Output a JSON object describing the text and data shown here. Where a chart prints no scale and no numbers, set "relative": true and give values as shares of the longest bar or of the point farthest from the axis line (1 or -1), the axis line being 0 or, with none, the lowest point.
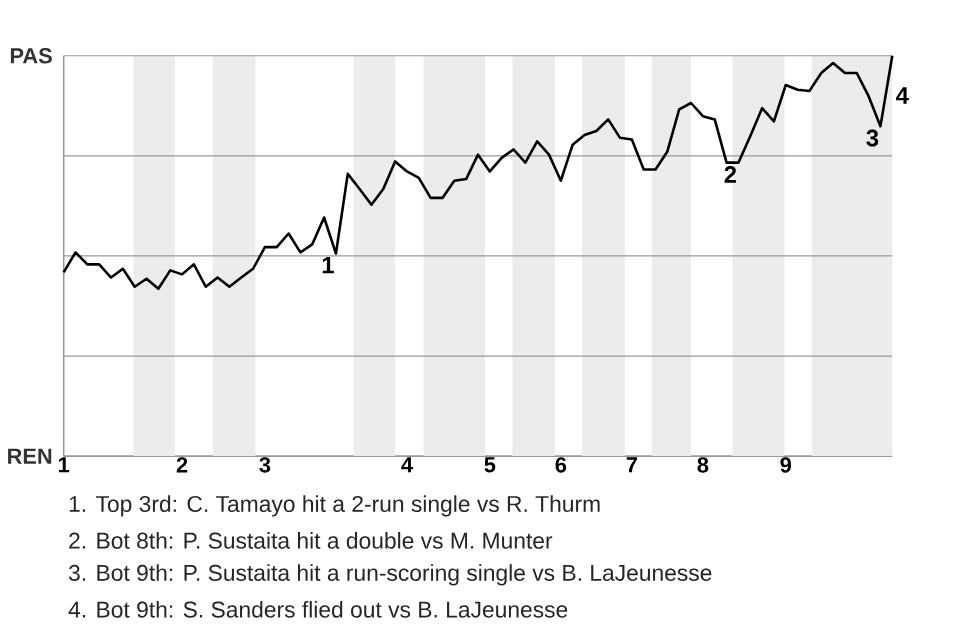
{
  "chart_data": {
    "type": "line",
    "relative": true,
    "categories": [
      "1",
      null,
      null,
      null,
      null,
      null,
      null,
      null,
      null,
      null,
      "2",
      null,
      null,
      null,
      null,
      null,
      null,
      "3",
      null,
      null,
      null,
      null,
      null,
      null,
      null,
      null,
      null,
      null,
      null,
      "4",
      null,
      null,
      null,
      null,
      null,
      null,
      "5",
      null,
      null,
      null,
      null,
      null,
      "6",
      null,
      null,
      null,
      null,
      null,
      "7",
      null,
      null,
      null,
      null,
      null,
      "8",
      null,
      null,
      null,
      null,
      null,
      null,
      "9",
      null,
      null,
      null,
      null,
      null,
      null,
      null,
      null,
      null
    ],
    "series": [
      {
        "color": "#000000",
        "values": [
          0.459,
          0.509,
          0.479,
          0.479,
          0.446,
          0.468,
          0.423,
          0.443,
          0.418,
          0.464,
          0.454,
          0.479,
          0.423,
          0.446,
          0.423,
          0.446,
          0.468,
          0.522,
          0.522,
          0.556,
          0.509,
          0.529,
          0.596,
          0.506,
          0.705,
          0.667,
          0.628,
          0.667,
          0.736,
          0.711,
          0.695,
          0.645,
          0.645,
          0.688,
          0.692,
          0.753,
          0.711,
          0.745,
          0.766,
          0.733,
          0.786,
          0.753,
          0.688,
          0.778,
          0.802,
          0.812,
          0.841,
          0.795,
          0.791,
          0.716,
          0.716,
          0.761,
          0.866,
          0.882,
          0.849,
          0.841,
          0.733,
          0.733,
          0.799,
          0.869,
          0.836,
          0.927,
          0.915,
          0.912,
          0.957,
          0.982,
          0.957,
          0.957,
          0.899,
          0.824,
          1
        ]
      }
    ],
    "grid": "y",
    "marker": "none",
    "line_style": "solid",
    "annotations": [
      "PAS",
      "REN",
      {
        "text": "1",
        "y": 0.506
      },
      {
        "text": "2",
        "y": 0.733
      },
      {
        "text": "3",
        "y": 0.824
      },
      "4",
      "1. Top 3rd: C. Tamayo hit a 2-run single vs R. Thurm",
      "2. Bot 8th: P. Sustaita hit a double vs M. Munter",
      "3. Bot 9th: P. Sustaita hit a run-scoring single vs B. LaJeunesse",
      "4. Bot 9th: S. Sanders flied out vs B. LaJeunesse"
    ]
  }
}
